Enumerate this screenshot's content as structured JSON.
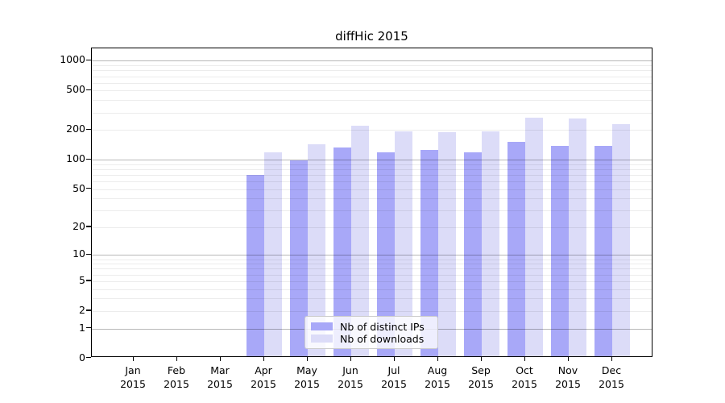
{
  "chart_data": {
    "type": "bar",
    "title": "diffHic 2015",
    "categories": [
      "Jan",
      "Feb",
      "Mar",
      "Apr",
      "May",
      "Jun",
      "Jul",
      "Aug",
      "Sep",
      "Oct",
      "Nov",
      "Dec"
    ],
    "x_sublabel": "2015",
    "series": [
      {
        "name": "Nb of distinct IPs",
        "color": "#a8a8f8",
        "values": [
          0,
          0,
          0,
          67,
          95,
          127,
          115,
          120,
          115,
          147,
          134,
          134
        ]
      },
      {
        "name": "Nb of downloads",
        "color": "#dcdcf8",
        "values": [
          0,
          0,
          0,
          114,
          139,
          213,
          187,
          184,
          185,
          258,
          250,
          222
        ]
      }
    ],
    "y_ticks": [
      0,
      1,
      2,
      5,
      10,
      20,
      50,
      100,
      200,
      500,
      1000
    ],
    "y_scale": "log10(1+x)",
    "ylim": [
      0,
      1100
    ],
    "grid": "horizontal major and minor gridlines, drawn over bars",
    "legend_position": "inside plot, bottom center-left",
    "colors": {
      "major_grid": "#b6b6b6",
      "minor_grid": "#e9e9e9",
      "spine": "#000000",
      "background": "#ffffff"
    }
  }
}
